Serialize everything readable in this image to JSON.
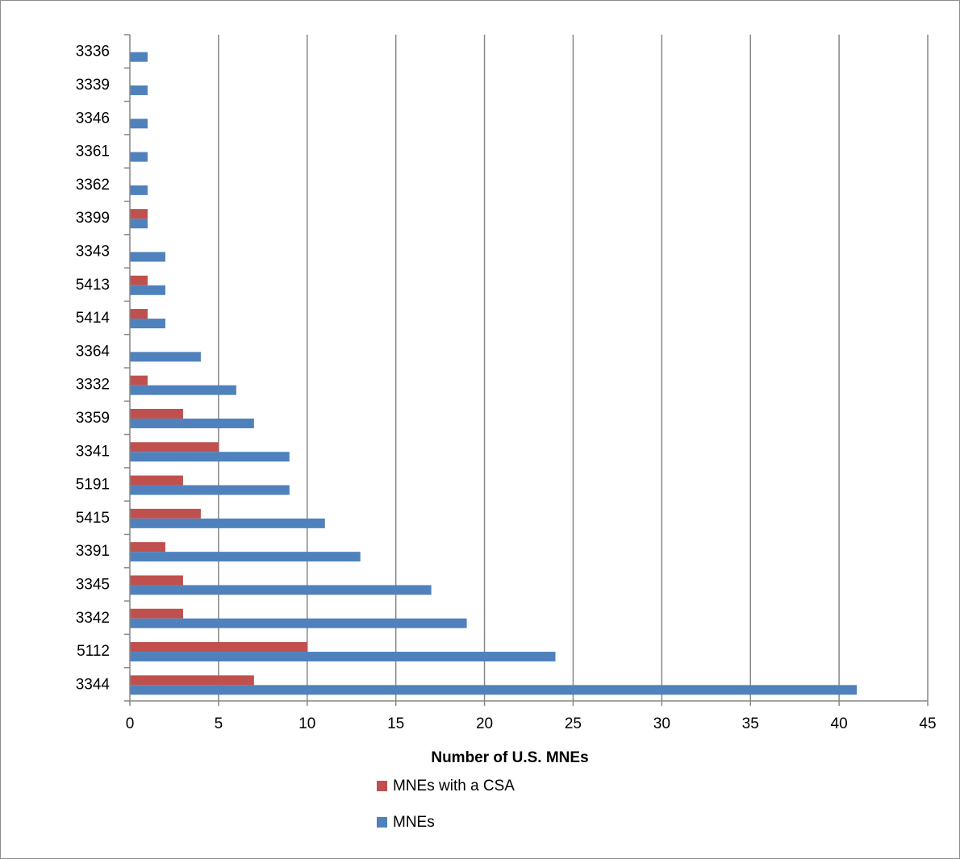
{
  "chart_data": {
    "type": "bar",
    "orientation": "horizontal",
    "title": "",
    "xlabel": "Number of U.S. MNEs",
    "ylabel": "",
    "xlim": [
      0,
      45
    ],
    "x_ticks": [
      "0",
      "5",
      "10",
      "15",
      "20",
      "25",
      "30",
      "35",
      "40",
      "45"
    ],
    "grid": "vertical",
    "legend_position": "bottom",
    "categories": [
      "3336",
      "3339",
      "3346",
      "3361",
      "3362",
      "3399",
      "3343",
      "5413",
      "5414",
      "3364",
      "3332",
      "3359",
      "3341",
      "5191",
      "5415",
      "3391",
      "3345",
      "3342",
      "5112",
      "3344"
    ],
    "series": [
      {
        "name": "MNEs with a CSA",
        "color": "#c0504d",
        "values": [
          0,
          0,
          0,
          0,
          0,
          1,
          0,
          1,
          1,
          0,
          1,
          3,
          5,
          3,
          4,
          2,
          3,
          3,
          10,
          7
        ]
      },
      {
        "name": "MNEs",
        "color": "#4f81bd",
        "values": [
          1,
          1,
          1,
          1,
          1,
          1,
          2,
          2,
          2,
          4,
          6,
          7,
          9,
          9,
          11,
          13,
          17,
          19,
          24,
          41
        ]
      }
    ]
  }
}
